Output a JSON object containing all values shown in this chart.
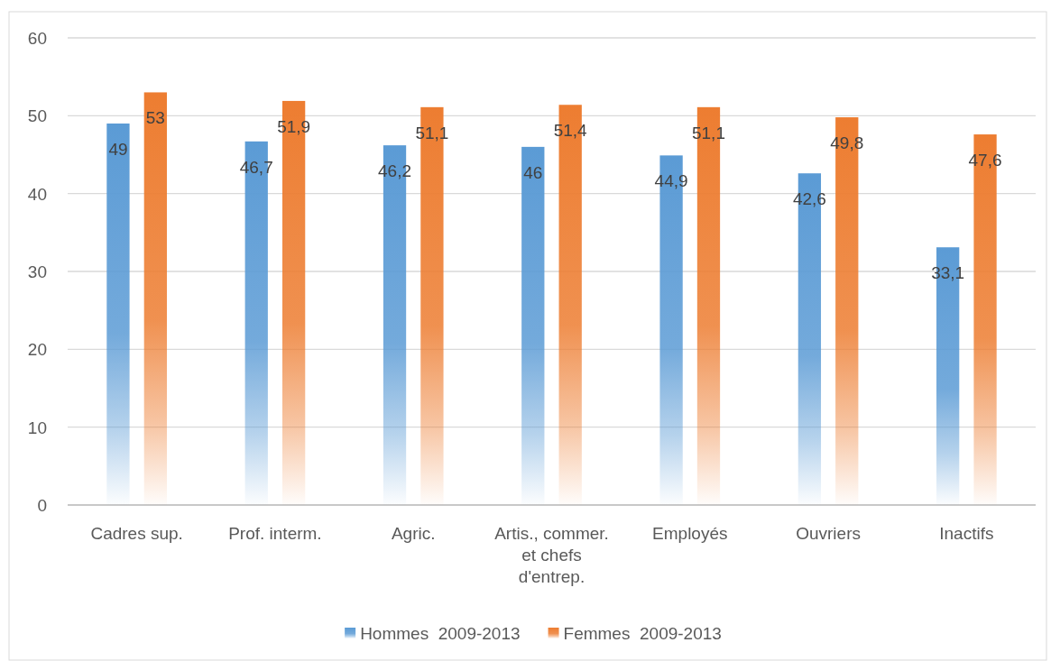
{
  "chart_data": {
    "type": "bar",
    "categories": [
      "Cadres sup.",
      "Prof. interm.",
      "Agric.",
      "Artis., commer. et chefs d'entrep.",
      "Employés",
      "Ouvriers",
      "Inactifs"
    ],
    "series": [
      {
        "name": "Hommes  2009-2013",
        "color": "#5b9bd5",
        "values": [
          49,
          46.7,
          46.2,
          46,
          44.9,
          42.6,
          33.1
        ],
        "value_labels": [
          "49",
          "46,7",
          "46,2",
          "46",
          "44,9",
          "42,6",
          "33,1"
        ]
      },
      {
        "name": "Femmes  2009-2013",
        "color": "#ed7d31",
        "values": [
          53,
          51.9,
          51.1,
          51.4,
          51.1,
          49.8,
          47.6
        ],
        "value_labels": [
          "53",
          "51,9",
          "51,1",
          "51,4",
          "51,1",
          "49,8",
          "47,6"
        ]
      }
    ],
    "ylim": [
      0,
      60
    ],
    "yticks": [
      0,
      10,
      20,
      30,
      40,
      50,
      60
    ],
    "grid": "y",
    "legend": "bottom"
  }
}
